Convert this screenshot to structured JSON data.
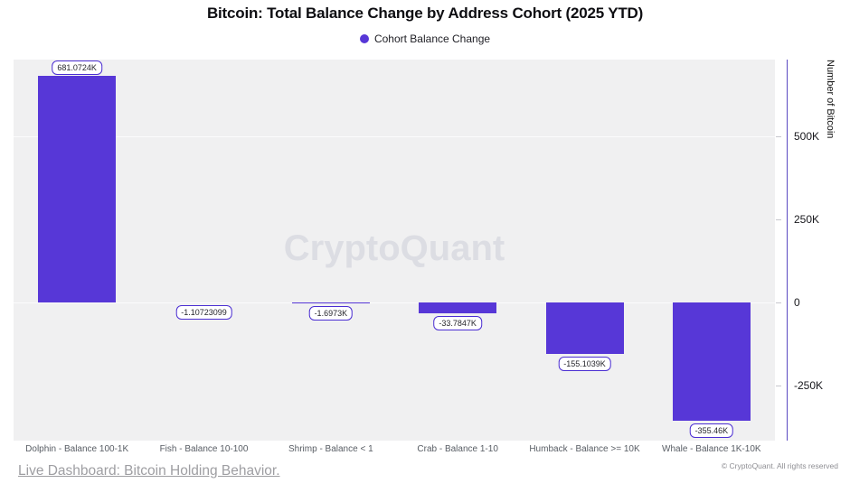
{
  "header": {
    "title": "Bitcoin: Total Balance Change by Address Cohort (2025 YTD)",
    "legend": {
      "label": "Cohort Balance Change",
      "color": "#5737d7"
    }
  },
  "chart_data": {
    "type": "bar",
    "title": "Bitcoin: Total Balance Change by Address Cohort (2025 YTD)",
    "series_name": "Cohort Balance Change",
    "categories": [
      "Dolphin - Balance 100-1K",
      "Fish - Balance 10-100",
      "Shrimp - Balance < 1",
      "Crab - Balance 1-10",
      "Humback - Balance >= 10K",
      "Whale - Balance 1K-10K"
    ],
    "values": [
      681072.4,
      -1.10723099,
      -1697.3,
      -33784.7,
      -155103.9,
      -355460
    ],
    "bar_labels": [
      "681.0724K",
      "-1.10723099",
      "-1.6973K",
      "-33.7847K",
      "-155.1039K",
      "-355.46K"
    ],
    "xlabel": "",
    "ylabel": "Number of Bitcoin",
    "ylim": [
      -415000,
      731000
    ],
    "y_ticks": [
      {
        "label": "500K",
        "value": 500000
      },
      {
        "label": "250K",
        "value": 250000
      },
      {
        "label": "0",
        "value": 0
      },
      {
        "label": "-250K",
        "value": -250000
      }
    ],
    "grid_values": [
      500000,
      0
    ],
    "legend_position": "top",
    "bar_color": "#5737d7",
    "label_border_color": "#4b2ed2",
    "plot_background": "#f0f0f1",
    "axis_line_color": "#5b4ac2",
    "watermark": "CryptoQuant"
  },
  "footer": {
    "link": "Live Dashboard: Bitcoin Holding Behavior.",
    "copyright": "© CryptoQuant. All rights reserved"
  }
}
